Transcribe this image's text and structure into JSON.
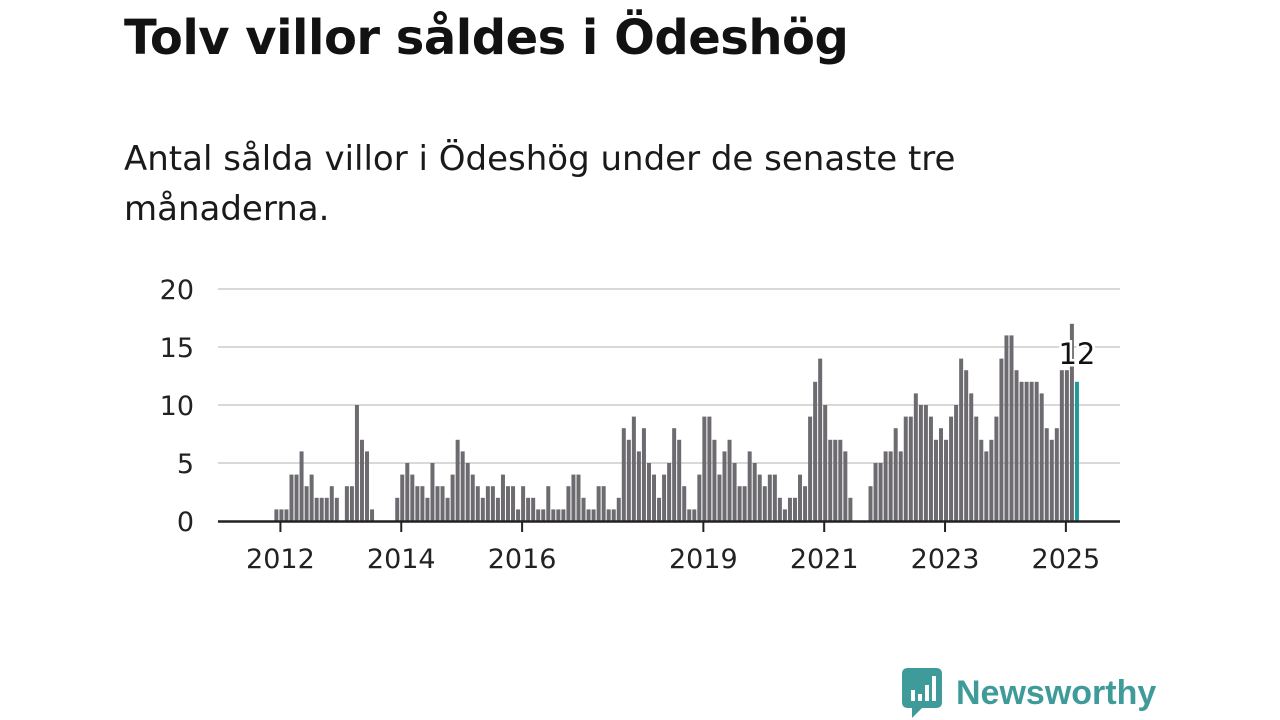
{
  "title": "Tolv villor såldes i Ödeshög",
  "subtitle": "Antal sålda villor i Ödeshög under de senaste tre månaderna.",
  "brand": {
    "name": "Newsworthy",
    "color": "#3f9a9a"
  },
  "chart_data": {
    "type": "bar",
    "title": "Tolv villor såldes i Ödeshög",
    "subtitle": "Antal sålda villor i Ödeshög under de senaste tre månaderna.",
    "xlabel": "",
    "ylabel": "",
    "ylim": [
      0,
      20
    ],
    "yticks": [
      0,
      5,
      10,
      15,
      20
    ],
    "xticks": [
      "2012",
      "2014",
      "2016",
      "2019",
      "2021",
      "2023",
      "2025"
    ],
    "grid": true,
    "bar_color": "#6d6b70",
    "highlight_color": "#1f9a94",
    "series": [
      {
        "values": [
          0,
          0,
          0,
          0,
          0,
          0,
          0,
          0,
          0,
          0,
          0,
          1,
          1,
          1,
          4,
          4,
          6,
          3,
          4,
          2,
          2,
          2,
          3,
          2,
          0,
          3,
          3,
          10,
          7,
          6,
          1,
          0,
          0,
          0,
          0,
          2,
          4,
          5,
          4,
          3,
          3,
          2,
          5,
          3,
          3,
          2,
          4,
          7,
          6,
          5,
          4,
          3,
          2,
          3,
          3,
          2,
          4,
          3,
          3,
          1,
          3,
          2,
          2,
          1,
          1,
          3,
          1,
          1,
          1,
          3,
          4,
          4,
          2,
          1,
          1,
          3,
          3,
          1,
          1,
          2,
          8,
          7,
          9,
          6,
          8,
          5,
          4,
          2,
          4,
          5,
          8,
          7,
          3,
          1,
          1,
          4,
          9,
          9,
          7,
          4,
          6,
          7,
          5,
          3,
          3,
          6,
          5,
          4,
          3,
          4,
          4,
          2,
          1,
          2,
          2,
          4,
          3,
          9,
          12,
          14,
          10,
          7,
          7,
          7,
          6,
          2,
          0,
          0,
          0,
          3,
          5,
          5,
          6,
          6,
          8,
          6,
          9,
          9,
          11,
          10,
          10,
          9,
          7,
          8,
          7,
          9,
          10,
          14,
          13,
          11,
          9,
          7,
          6,
          7,
          9,
          14,
          16,
          16,
          13,
          12,
          12,
          12,
          12,
          11,
          8,
          7,
          8,
          13,
          13,
          17,
          12
        ]
      }
    ],
    "annotations": [
      {
        "text": "12",
        "target": "last"
      }
    ]
  }
}
